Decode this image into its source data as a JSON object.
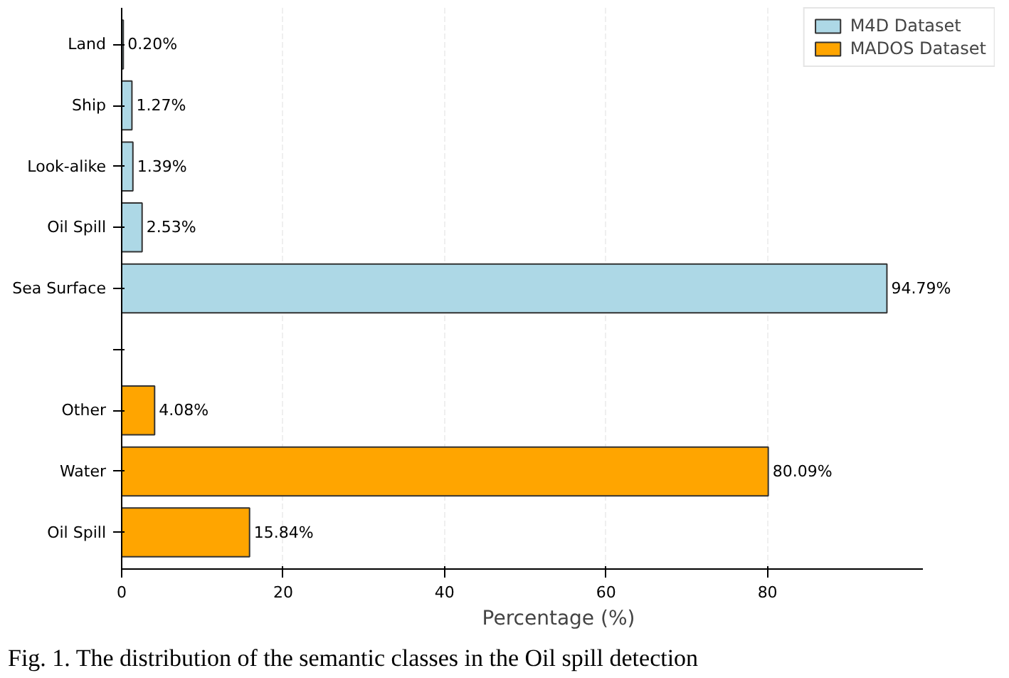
{
  "chart_data": {
    "type": "bar",
    "orientation": "horizontal",
    "xlabel": "Percentage (%)",
    "categories": [
      "Land",
      "Ship",
      "Look-alike",
      "Oil Spill",
      "Sea Surface",
      null,
      "Other",
      "Water",
      "Oil Spill"
    ],
    "series": [
      {
        "name": "M4D Dataset",
        "color": "#add8e6",
        "values": [
          0.2,
          1.27,
          1.39,
          2.53,
          94.79,
          null,
          null,
          null,
          null
        ],
        "value_labels": [
          "0.20%",
          "1.27%",
          "1.39%",
          "2.53%",
          "94.79%",
          null,
          null,
          null,
          null
        ]
      },
      {
        "name": "MADOS Dataset",
        "color": "#ffa500",
        "values": [
          null,
          null,
          null,
          null,
          null,
          null,
          4.08,
          80.09,
          15.84
        ],
        "value_labels": [
          null,
          null,
          null,
          null,
          null,
          null,
          "4.08%",
          "80.09%",
          "15.84%"
        ]
      }
    ],
    "xlim": [
      0,
      99.3
    ],
    "xticks": [
      0,
      20,
      40,
      60,
      80
    ],
    "grid": "x",
    "legend": "top right",
    "annotations": [
      "Fig. 1.  The distribution of the semantic classes in the Oil spill detection"
    ]
  }
}
